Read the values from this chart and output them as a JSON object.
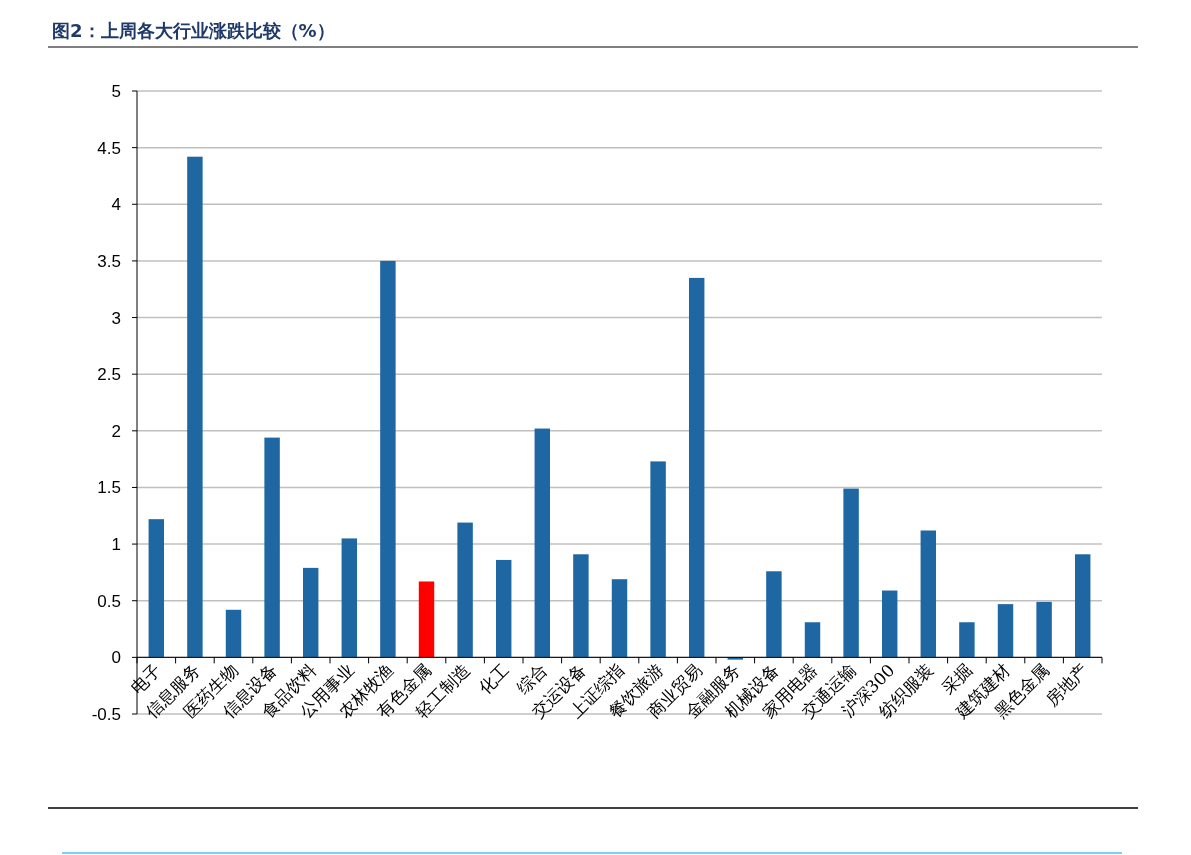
{
  "chart_data": {
    "type": "bar",
    "title": "图2：上周各大行业涨跌比较（%）",
    "categories": [
      "电子",
      "信息服务",
      "医药生物",
      "信息设备",
      "食品饮料",
      "公用事业",
      "农林牧渔",
      "有色金属",
      "轻工制造",
      "化工",
      "综合",
      "交运设备",
      "上证综指",
      "餐饮旅游",
      "商业贸易",
      "金融服务",
      "机械设备",
      "家用电器",
      "交通运输",
      "沪深300",
      "纺织服装",
      "采掘",
      "建筑建材",
      "黑色金属",
      "房地产"
    ],
    "values": [
      1.22,
      4.42,
      0.42,
      1.94,
      0.79,
      1.05,
      3.5,
      0.67,
      1.19,
      0.86,
      2.02,
      0.91,
      0.69,
      1.73,
      3.35,
      -0.02,
      0.76,
      0.31,
      1.49,
      0.59,
      1.12,
      0.31,
      0.47,
      0.49,
      0.91
    ],
    "colors": [
      "#1f67a3",
      "#1f67a3",
      "#1f67a3",
      "#1f67a3",
      "#1f67a3",
      "#1f67a3",
      "#1f67a3",
      "#ff0000",
      "#1f67a3",
      "#1f67a3",
      "#1f67a3",
      "#1f67a3",
      "#1f67a3",
      "#1f67a3",
      "#1f67a3",
      "#1f67a3",
      "#1f67a3",
      "#1f67a3",
      "#1f67a3",
      "#1f67a3",
      "#1f67a3",
      "#1f67a3",
      "#1f67a3",
      "#1f67a3",
      "#1f67a3"
    ],
    "ylim": [
      -0.5,
      5
    ],
    "yticks": [
      -0.5,
      0,
      0.5,
      1,
      1.5,
      2,
      2.5,
      3,
      3.5,
      4,
      4.5,
      5
    ],
    "grid": "y"
  }
}
